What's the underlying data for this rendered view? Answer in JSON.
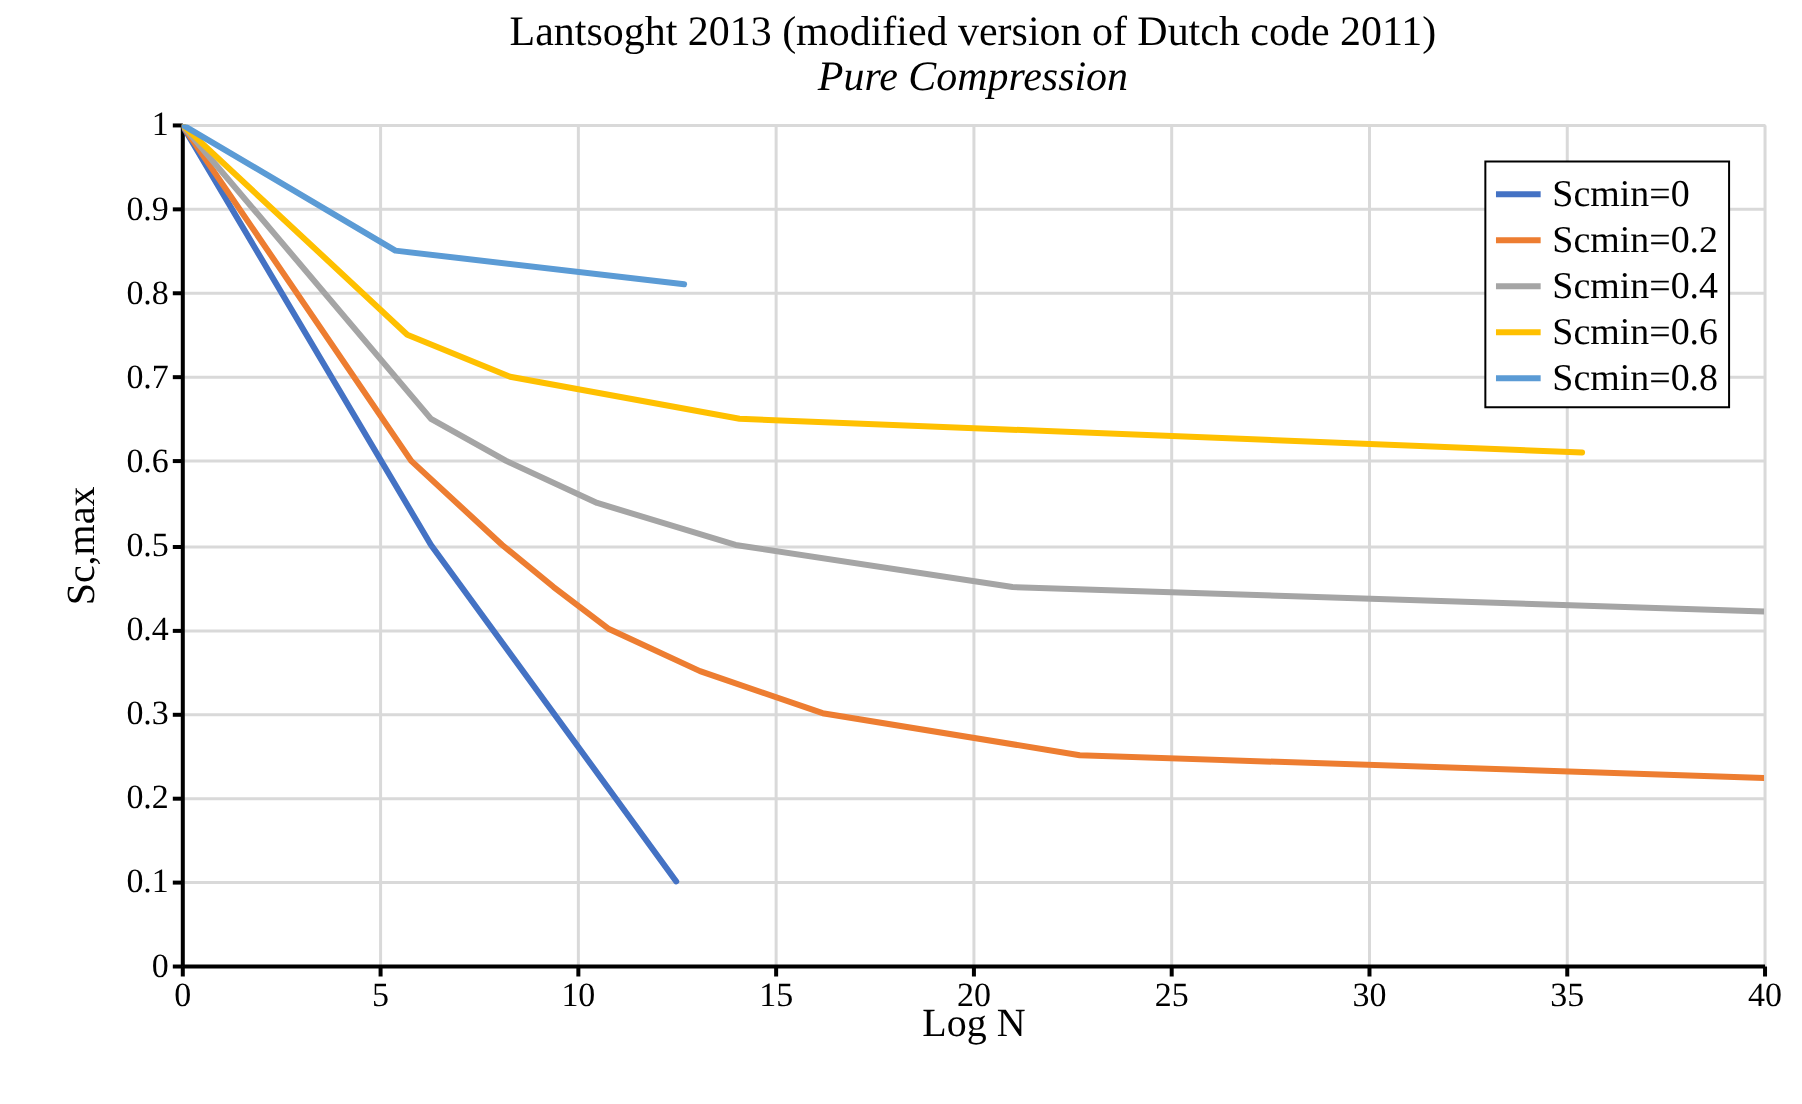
{
  "chart_data": {
    "type": "line",
    "title": "Lantsoght 2013 (modified version of Dutch code 2011)",
    "subtitle": "Pure Compression",
    "xlabel": "Log N",
    "ylabel": "Sc,max",
    "xlim": [
      0,
      40
    ],
    "xticks": [
      0,
      5,
      10,
      15,
      20,
      25,
      30,
      35,
      40
    ],
    "ylim": [
      0,
      1
    ],
    "yticks": [
      0,
      0.1,
      0.2,
      0.3,
      0.4,
      0.5,
      0.6,
      0.7,
      0.8,
      0.9,
      1
    ],
    "grid": true,
    "legend": "top right",
    "marker": "none",
    "line_style": "solid",
    "series": [
      {
        "name": "Scmin=0",
        "color": "#4472c4",
        "x": [
          0,
          6.3,
          12.5
        ],
        "values": [
          1,
          0.5,
          0.1
        ]
      },
      {
        "name": "Scmin=0.2",
        "color": "#ed7d31",
        "x": [
          0,
          5.8,
          8.1,
          9.4,
          10.8,
          13.1,
          16.2,
          22.7,
          40
        ],
        "values": [
          1,
          0.6,
          0.5,
          0.45,
          0.4,
          0.35,
          0.3,
          0.25,
          0.223
        ]
      },
      {
        "name": "Scmin=0.4",
        "color": "#a5a5a5",
        "x": [
          0,
          6.3,
          8.2,
          10.5,
          14,
          21,
          40
        ],
        "values": [
          1,
          0.65,
          0.6,
          0.55,
          0.5,
          0.45,
          0.421
        ]
      },
      {
        "name": "Scmin=0.6",
        "color": "#ffc000",
        "x": [
          0,
          5.7,
          8.3,
          14.1,
          35.4
        ],
        "values": [
          1,
          0.75,
          0.7,
          0.65,
          0.61
        ]
      },
      {
        "name": "Scmin=0.8",
        "color": "#5b9bd5",
        "x": [
          0,
          5.4,
          12.7
        ],
        "values": [
          1,
          0.85,
          0.81
        ]
      }
    ]
  }
}
